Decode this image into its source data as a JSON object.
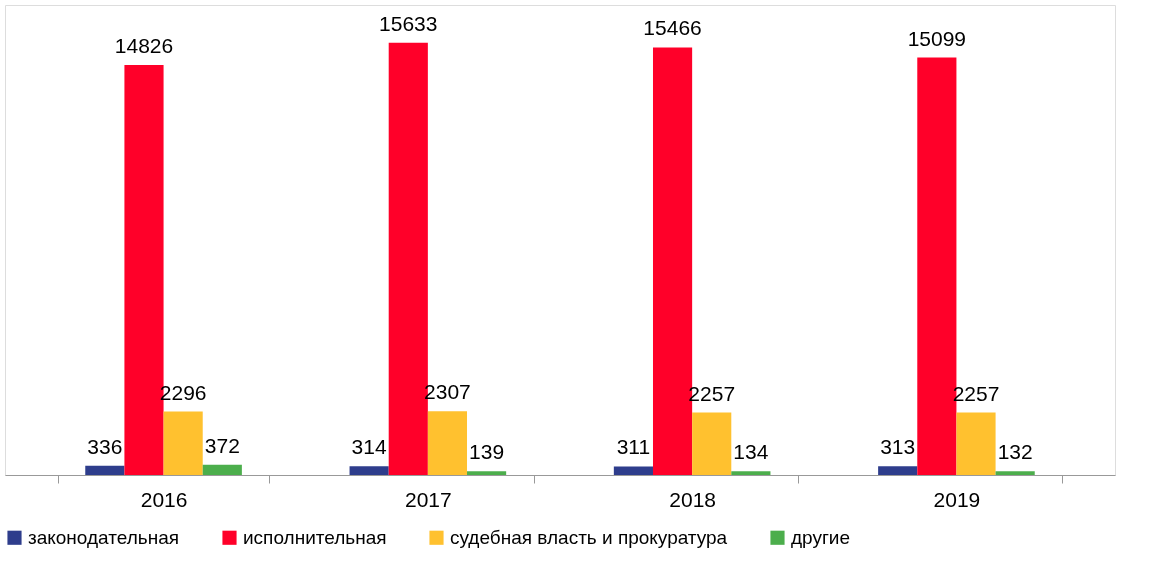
{
  "chart_data": {
    "type": "bar",
    "categories": [
      "2016",
      "2017",
      "2018",
      "2019"
    ],
    "series": [
      {
        "name": "законодательная",
        "color": "#2e3d8c",
        "values": [
          336,
          314,
          311,
          313
        ]
      },
      {
        "name": "исполнительная",
        "color": "#ff0029",
        "values": [
          14826,
          15633,
          15466,
          15099
        ]
      },
      {
        "name": "судебная власть и прокуратура",
        "color": "#ffc12f",
        "values": [
          2296,
          2307,
          2257,
          2257
        ]
      },
      {
        "name": "другие",
        "color": "#4cae4c",
        "values": [
          372,
          139,
          134,
          132
        ]
      }
    ],
    "ylim": [
      0,
      17000
    ],
    "data_labels": true,
    "legend": "bottom",
    "grid": false
  }
}
